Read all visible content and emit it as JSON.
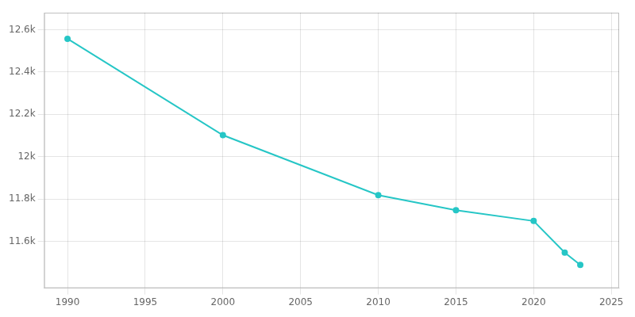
{
  "chart_data": {
    "type": "line",
    "x": [
      1990,
      2000,
      2010,
      2015,
      2020,
      2022,
      2023
    ],
    "values": [
      12557,
      12102,
      11819,
      11748,
      11697,
      11548,
      11490
    ],
    "color": "#26c6c6",
    "marker": "circle",
    "xlim": [
      1988.5,
      2025.5
    ],
    "xticks": [
      1990,
      1995,
      2000,
      2005,
      2010,
      2015,
      2020,
      2025
    ],
    "ylim": [
      11380,
      12680
    ],
    "yticks": [
      {
        "value": 11600,
        "label": "11.6k"
      },
      {
        "value": 11800,
        "label": "11.8k"
      },
      {
        "value": 12000,
        "label": "12k"
      },
      {
        "value": 12200,
        "label": "12.2k"
      },
      {
        "value": 12400,
        "label": "12.4k"
      },
      {
        "value": 12600,
        "label": "12.6k"
      }
    ],
    "grid": true
  }
}
